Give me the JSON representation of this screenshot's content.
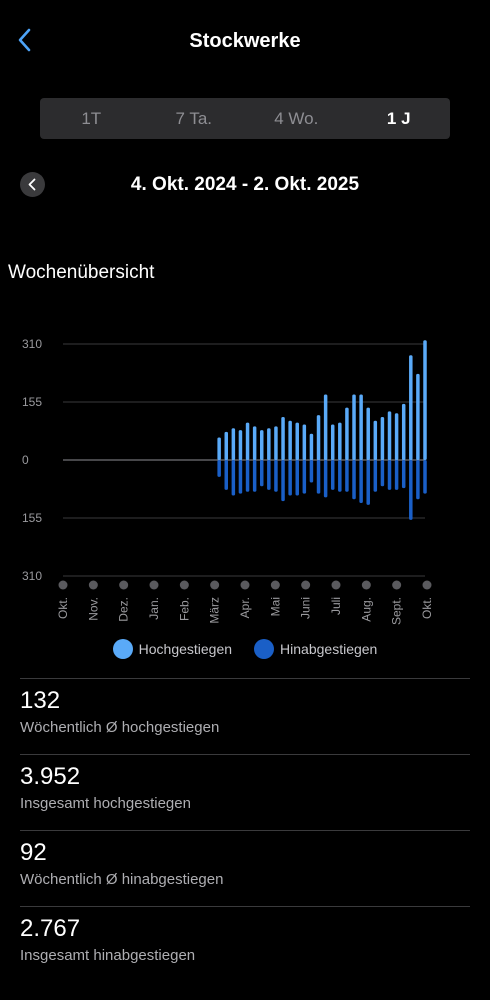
{
  "header": {
    "title": "Stockwerke"
  },
  "periods": [
    {
      "label": "1T",
      "active": false
    },
    {
      "label": "7 Ta.",
      "active": false
    },
    {
      "label": "4 Wo.",
      "active": false
    },
    {
      "label": "1 J",
      "active": true
    }
  ],
  "range": {
    "text": "4. Okt. 2024 - 2. Okt. 2025"
  },
  "section_title": "Wochenübersicht",
  "colors": {
    "up": "#5aaaf8",
    "down": "#1a5fc7",
    "grid": "#3a3a3c",
    "tick": "#9a9a9e"
  },
  "chart_data": {
    "type": "bar",
    "y_tick_labels": [
      "310",
      "155",
      "0",
      "155",
      "310"
    ],
    "ylim": [
      -310,
      310
    ],
    "x_tick_labels": [
      "Okt.",
      "Nov.",
      "Dez.",
      "Jan.",
      "Feb.",
      "März",
      "Apr.",
      "Mai",
      "Juni",
      "Juli",
      "Aug.",
      "Sept.",
      "Okt."
    ],
    "series": [
      {
        "name": "Hochgestiegen",
        "values": [
          0,
          0,
          0,
          0,
          0,
          0,
          0,
          0,
          0,
          0,
          0,
          0,
          0,
          0,
          0,
          0,
          0,
          0,
          0,
          0,
          0,
          0,
          60,
          75,
          85,
          80,
          100,
          90,
          80,
          85,
          90,
          115,
          105,
          100,
          95,
          70,
          120,
          175,
          95,
          100,
          140,
          175,
          175,
          140,
          105,
          115,
          130,
          125,
          150,
          280,
          230,
          320
        ]
      },
      {
        "name": "Hinabgestiegen",
        "values": [
          0,
          0,
          0,
          0,
          0,
          0,
          0,
          0,
          0,
          0,
          0,
          0,
          0,
          0,
          0,
          0,
          0,
          0,
          0,
          0,
          0,
          0,
          -45,
          -80,
          -95,
          -90,
          -85,
          -85,
          -70,
          -80,
          -85,
          -110,
          -95,
          -95,
          -90,
          -60,
          -90,
          -100,
          -80,
          -85,
          -85,
          -105,
          -115,
          -120,
          -85,
          -70,
          -80,
          -80,
          -75,
          -160,
          -105,
          -90
        ]
      }
    ]
  },
  "stats": [
    {
      "value": "132",
      "label": "Wöchentlich Ø hochgestiegen"
    },
    {
      "value": "3.952",
      "label": "Insgesamt hochgestiegen"
    },
    {
      "value": "92",
      "label": "Wöchentlich Ø hinabgestiegen"
    },
    {
      "value": "2.767",
      "label": "Insgesamt hinabgestiegen"
    }
  ]
}
